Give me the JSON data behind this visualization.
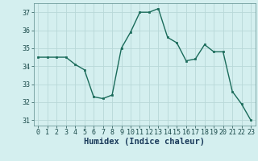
{
  "x": [
    0,
    1,
    2,
    3,
    4,
    5,
    6,
    7,
    8,
    9,
    10,
    11,
    12,
    13,
    14,
    15,
    16,
    17,
    18,
    19,
    20,
    21,
    22,
    23
  ],
  "y": [
    34.5,
    34.5,
    34.5,
    34.5,
    34.1,
    33.8,
    32.3,
    32.2,
    32.4,
    35.0,
    35.9,
    37.0,
    37.0,
    37.2,
    35.6,
    35.3,
    34.3,
    34.4,
    35.2,
    34.8,
    34.8,
    32.6,
    31.9,
    31.0
  ],
  "line_color": "#1a6b5a",
  "marker": "s",
  "marker_size": 2,
  "xlabel": "Humidex (Indice chaleur)",
  "xlim": [
    -0.5,
    23.5
  ],
  "ylim": [
    30.7,
    37.5
  ],
  "yticks": [
    31,
    32,
    33,
    34,
    35,
    36,
    37
  ],
  "xticks": [
    0,
    1,
    2,
    3,
    4,
    5,
    6,
    7,
    8,
    9,
    10,
    11,
    12,
    13,
    14,
    15,
    16,
    17,
    18,
    19,
    20,
    21,
    22,
    23
  ],
  "bg_color": "#d4efef",
  "grid_color": "#b8d8d8",
  "tick_label_fontsize": 6,
  "xlabel_fontsize": 7.5,
  "xlabel_color": "#1a3a5a"
}
